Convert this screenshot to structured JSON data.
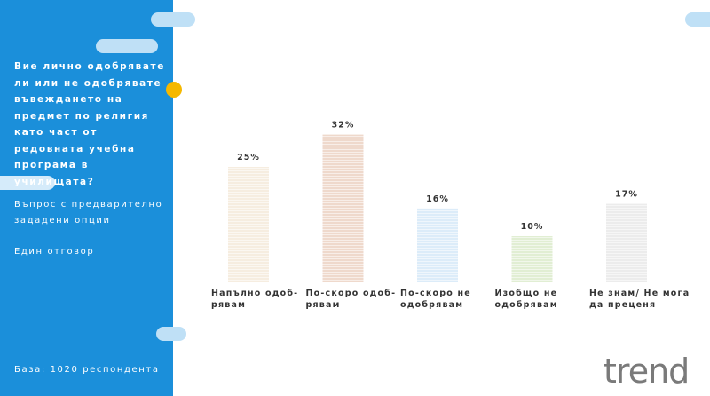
{
  "chart_data": {
    "type": "bar",
    "title": "Вие лично одобрявате\nли или не одобрявате\nвъвеждането на\nпредмет по религия\nкато част от\nредовната учебна\nпрограма в\nучилищата?",
    "subtitle": "Въпрос с предварително\nзададени опции",
    "note": "Един отговор",
    "base": "База: 1020 респондента",
    "logo": "trend",
    "categories": [
      "Напълно одоб-\nрявам",
      "По-скоро одоб-\nрявам",
      "По-скоро не\nодобрявам",
      "Изобщо не\nодобрявам",
      "Не знам/ Не мога\nда преценя"
    ],
    "values": [
      25,
      32,
      16,
      10,
      17
    ],
    "value_labels": [
      "25%",
      "32%",
      "16%",
      "10%",
      "17%"
    ],
    "colors": [
      "#f6ede0",
      "#efd9cc",
      "#dcecf9",
      "#e1eed3",
      "#ececec"
    ],
    "ylim": [
      0,
      35
    ]
  }
}
